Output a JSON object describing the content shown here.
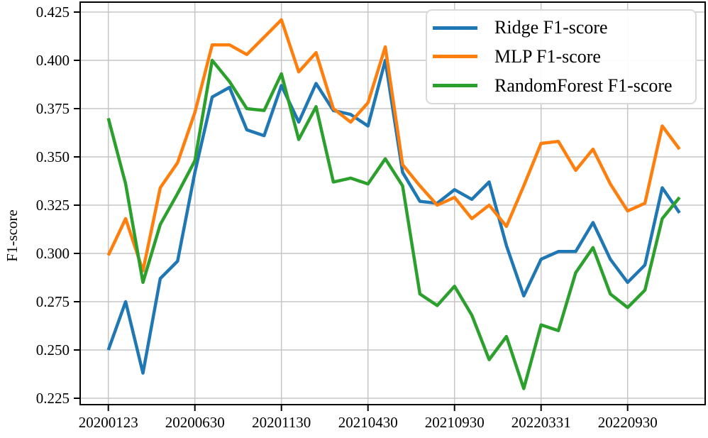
{
  "chart_data": {
    "type": "line",
    "title": "",
    "xlabel": "",
    "ylabel": "F1-score",
    "x_index_count": 34,
    "x_tick_positions": [
      0,
      5,
      10,
      15,
      20,
      25,
      30
    ],
    "x_tick_labels": [
      "20200123",
      "20200630",
      "20201130",
      "20210430",
      "20210930",
      "20220331",
      "20220930"
    ],
    "yticks": [
      0.225,
      0.25,
      0.275,
      0.3,
      0.325,
      0.35,
      0.375,
      0.4,
      0.425
    ],
    "ytick_labels": [
      "0.225",
      "0.250",
      "0.275",
      "0.300",
      "0.325",
      "0.350",
      "0.375",
      "0.400",
      "0.425"
    ],
    "ylim": [
      0.2199,
      0.4305
    ],
    "grid": true,
    "legend_position": "upper right",
    "colors": {
      "grid": "#c6c6c6",
      "axis": "#000000",
      "background": "#ffffff"
    },
    "series": [
      {
        "name": "Ridge F1-score",
        "color": "#1f77b4",
        "values": [
          0.25,
          0.275,
          0.238,
          0.287,
          0.296,
          0.342,
          0.381,
          0.386,
          0.364,
          0.361,
          0.387,
          0.368,
          0.388,
          0.374,
          0.372,
          0.366,
          0.4,
          0.342,
          0.327,
          0.326,
          0.333,
          0.328,
          0.337,
          0.304,
          0.278,
          0.297,
          0.301,
          0.301,
          0.316,
          0.297,
          0.285,
          0.294,
          0.334,
          0.321
        ]
      },
      {
        "name": "MLP F1-score",
        "color": "#ff7f0e",
        "values": [
          0.299,
          0.318,
          0.291,
          0.334,
          0.347,
          0.373,
          0.408,
          0.408,
          0.403,
          0.412,
          0.421,
          0.394,
          0.404,
          0.375,
          0.368,
          0.378,
          0.407,
          0.346,
          0.335,
          0.325,
          0.329,
          0.318,
          0.325,
          0.314,
          0.335,
          0.357,
          0.358,
          0.343,
          0.354,
          0.336,
          0.322,
          0.326,
          0.366,
          0.354
        ]
      },
      {
        "name": "RandomForest F1-score",
        "color": "#2ca02c",
        "values": [
          0.37,
          0.336,
          0.285,
          0.315,
          0.331,
          0.348,
          0.4,
          0.389,
          0.375,
          0.374,
          0.393,
          0.359,
          0.376,
          0.337,
          0.339,
          0.336,
          0.349,
          0.335,
          0.279,
          0.273,
          0.283,
          0.268,
          0.245,
          0.257,
          0.23,
          0.263,
          0.26,
          0.29,
          0.303,
          0.279,
          0.272,
          0.281,
          0.318,
          0.329
        ]
      }
    ]
  }
}
